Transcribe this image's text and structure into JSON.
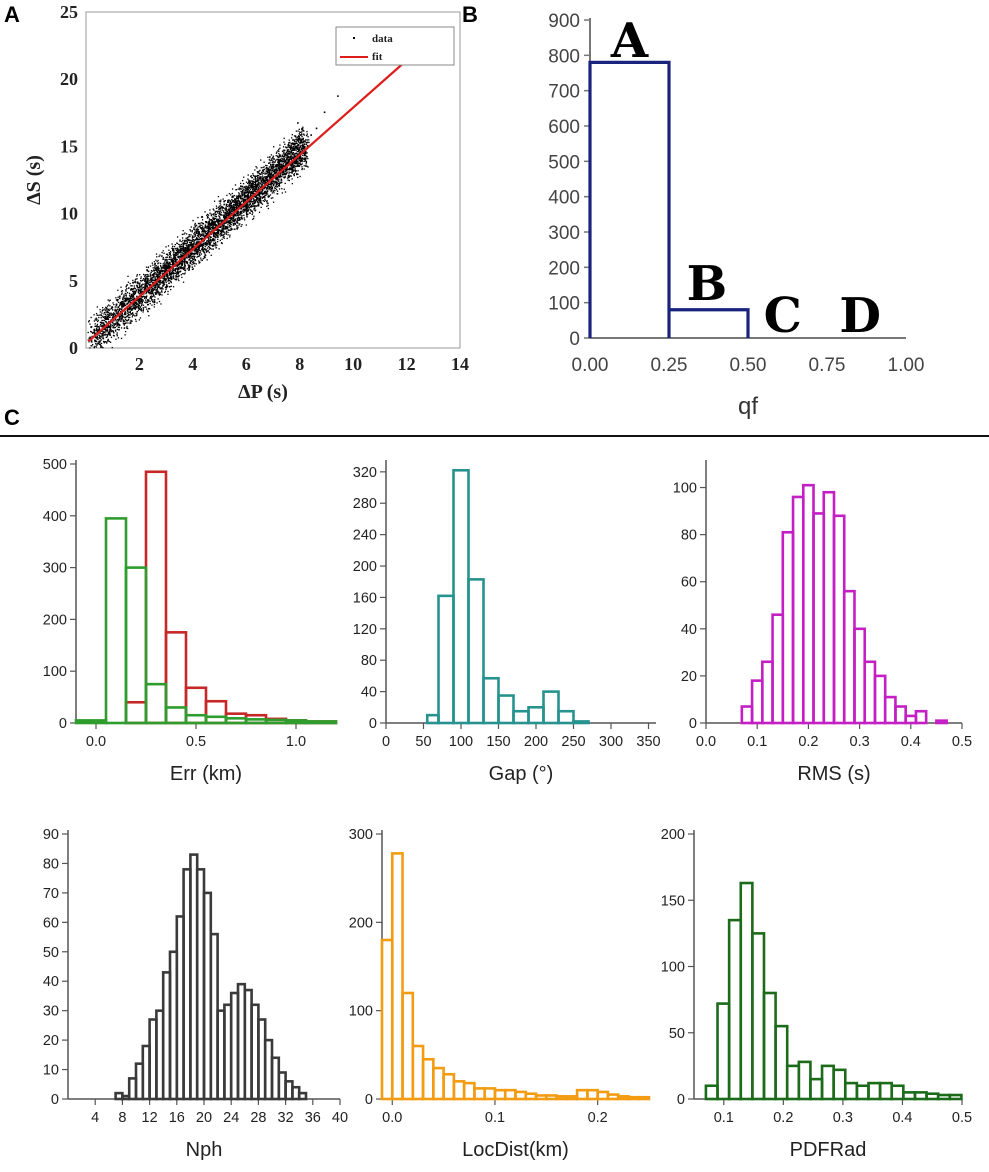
{
  "panels": {
    "a": {
      "letter": "A"
    },
    "b": {
      "letter": "B"
    },
    "c": {
      "letter": "C"
    }
  },
  "chart_data": [
    {
      "id": "panel-a-scatter",
      "type": "scatter",
      "title": "",
      "xlabel": "ΔP (s)",
      "ylabel": "ΔS (s)",
      "xlim": [
        0,
        14
      ],
      "ylim": [
        0,
        25
      ],
      "xticks": [
        2,
        4,
        6,
        8,
        10,
        12,
        14
      ],
      "yticks": [
        0,
        5,
        10,
        15,
        20,
        25
      ],
      "legend": {
        "position": "top-right",
        "entries": [
          {
            "label": "data",
            "marker": "dot",
            "color": "#000000"
          },
          {
            "label": "fit",
            "marker": "line",
            "color": "#dd1c1c"
          }
        ]
      },
      "series": [
        {
          "name": "fit",
          "type": "line",
          "color": "#dd1c1c",
          "points": [
            [
              0.1,
              0.5
            ],
            [
              12.0,
              21.4
            ]
          ]
        },
        {
          "name": "data",
          "type": "scatter-cloud",
          "color": "#000000",
          "description_points": [
            [
              0.2,
              0.6
            ],
            [
              1,
              2.2
            ],
            [
              2,
              3.8
            ],
            [
              3,
              5.6
            ],
            [
              4,
              7.4
            ],
            [
              5,
              9.3
            ],
            [
              6,
              11.1
            ],
            [
              7,
              12.9
            ],
            [
              7.8,
              14.3
            ]
          ],
          "spread": 0.8
        }
      ]
    },
    {
      "id": "panel-b-qf",
      "type": "bar",
      "xlabel": "qf",
      "ylabel": "",
      "xlim": [
        0,
        1
      ],
      "ylim": [
        0,
        900
      ],
      "xticks": [
        "0.00",
        "0.25",
        "0.50",
        "0.75",
        "1.00"
      ],
      "yticks": [
        0,
        100,
        200,
        300,
        400,
        500,
        600,
        700,
        800,
        900
      ],
      "color": "#1a237e",
      "bins": [
        {
          "range": [
            0,
            0.25
          ],
          "value": 780,
          "label": "A"
        },
        {
          "range": [
            0.25,
            0.5
          ],
          "value": 80,
          "label": "B"
        },
        {
          "range": [
            0.5,
            0.75
          ],
          "value": 0,
          "label": "C"
        },
        {
          "range": [
            0.75,
            1.0
          ],
          "value": 0,
          "label": "D"
        }
      ]
    },
    {
      "id": "panel-c-err",
      "type": "bar",
      "xlabel": "Err (km)",
      "xlim": [
        -0.1,
        1.2
      ],
      "ylim": [
        0,
        500
      ],
      "xticks": [
        "0.0",
        "0.5",
        "1.0"
      ],
      "yticks": [
        0,
        100,
        200,
        300,
        400,
        500
      ],
      "series": [
        {
          "name": "red",
          "color": "#c62828",
          "bin_edges": [
            -0.1,
            0.05,
            0.15,
            0.25,
            0.35,
            0.45,
            0.55,
            0.65,
            0.75,
            0.85,
            0.95,
            1.05,
            1.2
          ],
          "values": [
            0,
            0,
            40,
            485,
            175,
            68,
            42,
            18,
            15,
            8,
            5,
            3
          ]
        },
        {
          "name": "green",
          "color": "#2e9d2e",
          "bin_edges": [
            -0.1,
            0.05,
            0.15,
            0.25,
            0.35,
            0.45,
            0.55,
            0.65,
            0.75,
            0.85,
            0.95,
            1.05,
            1.2
          ],
          "values": [
            5,
            395,
            300,
            75,
            30,
            15,
            12,
            9,
            7,
            6,
            5,
            3
          ]
        }
      ]
    },
    {
      "id": "panel-c-gap",
      "type": "bar",
      "xlabel": "Gap (°)",
      "xlim": [
        0,
        360
      ],
      "ylim": [
        0,
        330
      ],
      "xticks": [
        "0",
        "50",
        "100",
        "150",
        "200",
        "250",
        "300",
        "350"
      ],
      "yticks": [
        0,
        40,
        80,
        120,
        160,
        200,
        240,
        280,
        320
      ],
      "color": "#26938e",
      "bin_edges": [
        5,
        55,
        70,
        90,
        110,
        130,
        150,
        170,
        190,
        210,
        230,
        250,
        270
      ],
      "values": [
        0,
        10,
        162,
        322,
        183,
        57,
        35,
        15,
        20,
        40,
        15,
        2
      ]
    },
    {
      "id": "panel-c-rms",
      "type": "bar",
      "xlabel": "RMS (s)",
      "xlim": [
        0,
        0.5
      ],
      "ylim": [
        0,
        110
      ],
      "xticks": [
        "0.0",
        "0.1",
        "0.2",
        "0.3",
        "0.4",
        "0.5"
      ],
      "yticks": [
        0,
        20,
        40,
        60,
        80,
        100
      ],
      "color": "#c41fc4",
      "bin_start": 0.07,
      "bin_width": 0.02,
      "values": [
        7,
        18,
        26,
        46,
        81,
        96,
        101,
        89,
        98,
        88,
        56,
        40,
        26,
        20,
        11,
        7,
        3,
        5,
        0,
        1
      ]
    },
    {
      "id": "panel-c-nph",
      "type": "bar",
      "xlabel": "Nph",
      "xlim": [
        0,
        40
      ],
      "ylim": [
        0,
        90
      ],
      "xticks": [
        "4",
        "8",
        "12",
        "16",
        "20",
        "24",
        "28",
        "32",
        "36",
        "40"
      ],
      "yticks": [
        0,
        10,
        20,
        30,
        40,
        50,
        60,
        70,
        80,
        90
      ],
      "color": "#3a3a3a",
      "bin_start": 7,
      "bin_width": 1,
      "values": [
        2,
        1,
        7,
        12,
        18,
        27,
        30,
        43,
        50,
        62,
        78,
        83,
        78,
        70,
        56,
        30,
        32,
        36,
        39,
        37,
        32,
        27,
        20,
        14,
        9,
        6,
        4,
        2
      ]
    },
    {
      "id": "panel-c-locdist",
      "type": "bar",
      "xlabel": "LocDist(km)",
      "xlim": [
        -0.01,
        0.25
      ],
      "ylim": [
        0,
        300
      ],
      "xticks": [
        "0.0",
        "0.1",
        "0.2"
      ],
      "yticks": [
        0,
        100,
        200,
        300
      ],
      "color": "#f39c12",
      "bin_start": -0.01,
      "bin_width": 0.01,
      "values": [
        180,
        278,
        120,
        60,
        45,
        35,
        28,
        20,
        18,
        12,
        12,
        10,
        10,
        8,
        6,
        4,
        4,
        3,
        3,
        10,
        10,
        8,
        5,
        3,
        2,
        2
      ]
    },
    {
      "id": "panel-c-pdfrad",
      "type": "bar",
      "xlabel": "PDFRad",
      "xlim": [
        0.05,
        0.5
      ],
      "ylim": [
        0,
        200
      ],
      "xticks": [
        "0.1",
        "0.2",
        "0.3",
        "0.4",
        "0.5"
      ],
      "yticks": [
        0,
        50,
        100,
        150,
        200
      ],
      "color": "#1b6b1b",
      "bin_start": 0.07,
      "bin_width": 0.0195,
      "values": [
        10,
        72,
        135,
        163,
        125,
        80,
        55,
        25,
        28,
        15,
        25,
        22,
        12,
        10,
        12,
        12,
        10,
        5,
        5,
        4,
        3,
        3
      ]
    }
  ]
}
